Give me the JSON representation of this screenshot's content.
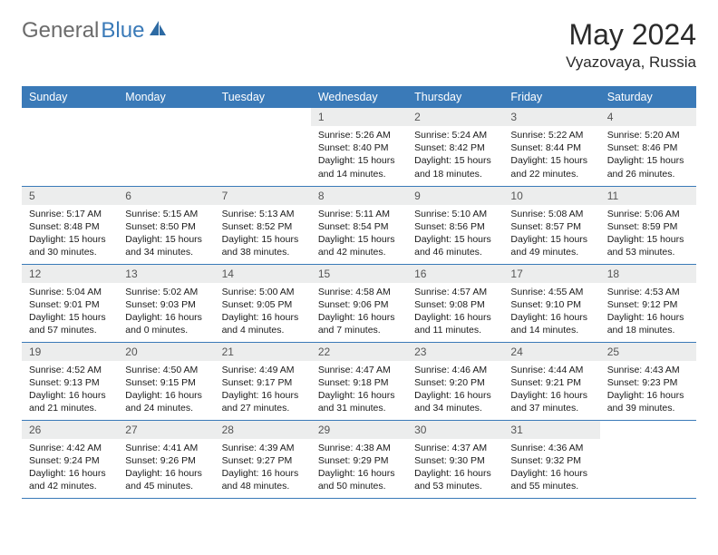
{
  "brand": {
    "text1": "General",
    "text2": "Blue"
  },
  "title": "May 2024",
  "location": "Vyazovaya, Russia",
  "colors": {
    "header_bg": "#3a7ab8",
    "daynum_bg": "#eceded",
    "border": "#3a7ab8"
  },
  "weekdays": [
    "Sunday",
    "Monday",
    "Tuesday",
    "Wednesday",
    "Thursday",
    "Friday",
    "Saturday"
  ],
  "weeks": [
    [
      {
        "n": "",
        "sr": "",
        "ss": "",
        "dl": ""
      },
      {
        "n": "",
        "sr": "",
        "ss": "",
        "dl": ""
      },
      {
        "n": "",
        "sr": "",
        "ss": "",
        "dl": ""
      },
      {
        "n": "1",
        "sr": "Sunrise: 5:26 AM",
        "ss": "Sunset: 8:40 PM",
        "dl": "Daylight: 15 hours and 14 minutes."
      },
      {
        "n": "2",
        "sr": "Sunrise: 5:24 AM",
        "ss": "Sunset: 8:42 PM",
        "dl": "Daylight: 15 hours and 18 minutes."
      },
      {
        "n": "3",
        "sr": "Sunrise: 5:22 AM",
        "ss": "Sunset: 8:44 PM",
        "dl": "Daylight: 15 hours and 22 minutes."
      },
      {
        "n": "4",
        "sr": "Sunrise: 5:20 AM",
        "ss": "Sunset: 8:46 PM",
        "dl": "Daylight: 15 hours and 26 minutes."
      }
    ],
    [
      {
        "n": "5",
        "sr": "Sunrise: 5:17 AM",
        "ss": "Sunset: 8:48 PM",
        "dl": "Daylight: 15 hours and 30 minutes."
      },
      {
        "n": "6",
        "sr": "Sunrise: 5:15 AM",
        "ss": "Sunset: 8:50 PM",
        "dl": "Daylight: 15 hours and 34 minutes."
      },
      {
        "n": "7",
        "sr": "Sunrise: 5:13 AM",
        "ss": "Sunset: 8:52 PM",
        "dl": "Daylight: 15 hours and 38 minutes."
      },
      {
        "n": "8",
        "sr": "Sunrise: 5:11 AM",
        "ss": "Sunset: 8:54 PM",
        "dl": "Daylight: 15 hours and 42 minutes."
      },
      {
        "n": "9",
        "sr": "Sunrise: 5:10 AM",
        "ss": "Sunset: 8:56 PM",
        "dl": "Daylight: 15 hours and 46 minutes."
      },
      {
        "n": "10",
        "sr": "Sunrise: 5:08 AM",
        "ss": "Sunset: 8:57 PM",
        "dl": "Daylight: 15 hours and 49 minutes."
      },
      {
        "n": "11",
        "sr": "Sunrise: 5:06 AM",
        "ss": "Sunset: 8:59 PM",
        "dl": "Daylight: 15 hours and 53 minutes."
      }
    ],
    [
      {
        "n": "12",
        "sr": "Sunrise: 5:04 AM",
        "ss": "Sunset: 9:01 PM",
        "dl": "Daylight: 15 hours and 57 minutes."
      },
      {
        "n": "13",
        "sr": "Sunrise: 5:02 AM",
        "ss": "Sunset: 9:03 PM",
        "dl": "Daylight: 16 hours and 0 minutes."
      },
      {
        "n": "14",
        "sr": "Sunrise: 5:00 AM",
        "ss": "Sunset: 9:05 PM",
        "dl": "Daylight: 16 hours and 4 minutes."
      },
      {
        "n": "15",
        "sr": "Sunrise: 4:58 AM",
        "ss": "Sunset: 9:06 PM",
        "dl": "Daylight: 16 hours and 7 minutes."
      },
      {
        "n": "16",
        "sr": "Sunrise: 4:57 AM",
        "ss": "Sunset: 9:08 PM",
        "dl": "Daylight: 16 hours and 11 minutes."
      },
      {
        "n": "17",
        "sr": "Sunrise: 4:55 AM",
        "ss": "Sunset: 9:10 PM",
        "dl": "Daylight: 16 hours and 14 minutes."
      },
      {
        "n": "18",
        "sr": "Sunrise: 4:53 AM",
        "ss": "Sunset: 9:12 PM",
        "dl": "Daylight: 16 hours and 18 minutes."
      }
    ],
    [
      {
        "n": "19",
        "sr": "Sunrise: 4:52 AM",
        "ss": "Sunset: 9:13 PM",
        "dl": "Daylight: 16 hours and 21 minutes."
      },
      {
        "n": "20",
        "sr": "Sunrise: 4:50 AM",
        "ss": "Sunset: 9:15 PM",
        "dl": "Daylight: 16 hours and 24 minutes."
      },
      {
        "n": "21",
        "sr": "Sunrise: 4:49 AM",
        "ss": "Sunset: 9:17 PM",
        "dl": "Daylight: 16 hours and 27 minutes."
      },
      {
        "n": "22",
        "sr": "Sunrise: 4:47 AM",
        "ss": "Sunset: 9:18 PM",
        "dl": "Daylight: 16 hours and 31 minutes."
      },
      {
        "n": "23",
        "sr": "Sunrise: 4:46 AM",
        "ss": "Sunset: 9:20 PM",
        "dl": "Daylight: 16 hours and 34 minutes."
      },
      {
        "n": "24",
        "sr": "Sunrise: 4:44 AM",
        "ss": "Sunset: 9:21 PM",
        "dl": "Daylight: 16 hours and 37 minutes."
      },
      {
        "n": "25",
        "sr": "Sunrise: 4:43 AM",
        "ss": "Sunset: 9:23 PM",
        "dl": "Daylight: 16 hours and 39 minutes."
      }
    ],
    [
      {
        "n": "26",
        "sr": "Sunrise: 4:42 AM",
        "ss": "Sunset: 9:24 PM",
        "dl": "Daylight: 16 hours and 42 minutes."
      },
      {
        "n": "27",
        "sr": "Sunrise: 4:41 AM",
        "ss": "Sunset: 9:26 PM",
        "dl": "Daylight: 16 hours and 45 minutes."
      },
      {
        "n": "28",
        "sr": "Sunrise: 4:39 AM",
        "ss": "Sunset: 9:27 PM",
        "dl": "Daylight: 16 hours and 48 minutes."
      },
      {
        "n": "29",
        "sr": "Sunrise: 4:38 AM",
        "ss": "Sunset: 9:29 PM",
        "dl": "Daylight: 16 hours and 50 minutes."
      },
      {
        "n": "30",
        "sr": "Sunrise: 4:37 AM",
        "ss": "Sunset: 9:30 PM",
        "dl": "Daylight: 16 hours and 53 minutes."
      },
      {
        "n": "31",
        "sr": "Sunrise: 4:36 AM",
        "ss": "Sunset: 9:32 PM",
        "dl": "Daylight: 16 hours and 55 minutes."
      },
      {
        "n": "",
        "sr": "",
        "ss": "",
        "dl": ""
      }
    ]
  ]
}
